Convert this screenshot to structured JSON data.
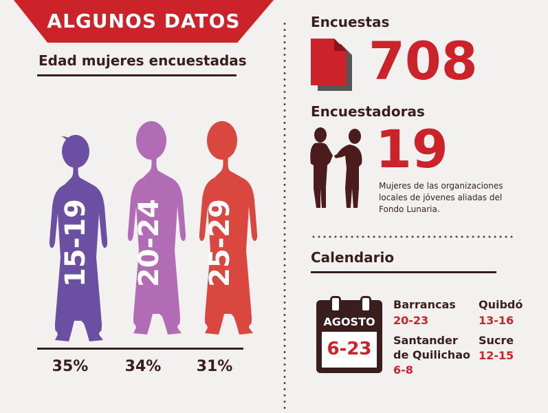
{
  "header": {
    "title": "ALGUNOS DATOS",
    "subtitle": "Edad mujeres encuestadas"
  },
  "age_groups": [
    {
      "range": "15-19",
      "percent": "35%",
      "color": "#6b4fa3"
    },
    {
      "range": "20-24",
      "percent": "34%",
      "color": "#b26cb5"
    },
    {
      "range": "25-29",
      "percent": "31%",
      "color": "#d9473f"
    }
  ],
  "surveys": {
    "label": "Encuestas",
    "value": "708",
    "icon": "document-icon"
  },
  "surveyors": {
    "label": "Encuestadoras",
    "value": "19",
    "icon": "women-talking-icon",
    "description": "Mujeres de las organizaciones locales de jóvenes aliadas del Fondo Lunaria."
  },
  "calendar": {
    "label": "Calendario",
    "icon_month": "AGOSTO",
    "icon_range": "6-23",
    "locations": [
      {
        "city": "Barrancas",
        "dates": "20-23"
      },
      {
        "city": "Quibdó",
        "dates": "13-16"
      },
      {
        "city": "Santander de Quilichao",
        "dates": "6-8"
      },
      {
        "city": "Sucre",
        "dates": "12-15"
      }
    ]
  },
  "colors": {
    "accent": "#cc2229",
    "dark": "#3a1d1d",
    "background": "#f2f1f0"
  }
}
